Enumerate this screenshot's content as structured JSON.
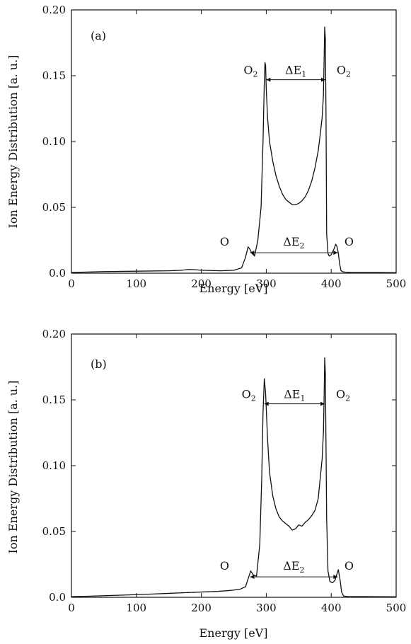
{
  "chart_data": [
    {
      "type": "line",
      "panel_label": "(a)",
      "xlabel": "Energy [eV]",
      "ylabel": "Ion Energy Distribution [a. u.]",
      "xlim": [
        0,
        500
      ],
      "ylim": [
        0,
        0.2
      ],
      "xticks": [
        0,
        100,
        200,
        300,
        400,
        500
      ],
      "xtick_labels": [
        "0",
        "100",
        "200",
        "300",
        "400",
        "500"
      ],
      "yticks": [
        0,
        0.05,
        0.1,
        0.15,
        0.2
      ],
      "ytick_labels": [
        "0.0",
        "0.05",
        "0.10",
        "0.15",
        "0.20"
      ],
      "grid": false,
      "series": [
        {
          "x": [
            0,
            20,
            50,
            100,
            150,
            170,
            180,
            190,
            200,
            230,
            250,
            262,
            268,
            272,
            275,
            278,
            282,
            287,
            292,
            295,
            297,
            298,
            299,
            300,
            302,
            305,
            310,
            315,
            320,
            325,
            330,
            335,
            340,
            345,
            350,
            355,
            360,
            365,
            370,
            375,
            380,
            383,
            386,
            388,
            389,
            390,
            391,
            392,
            393,
            395,
            397,
            400,
            404,
            407,
            409,
            411,
            413,
            415,
            418,
            422,
            430,
            450,
            470,
            500
          ],
          "y": [
            0.0005,
            0.0008,
            0.0012,
            0.0015,
            0.0018,
            0.0022,
            0.0028,
            0.0026,
            0.0022,
            0.0018,
            0.0022,
            0.004,
            0.012,
            0.02,
            0.018,
            0.015,
            0.013,
            0.025,
            0.05,
            0.1,
            0.145,
            0.16,
            0.158,
            0.14,
            0.118,
            0.1,
            0.085,
            0.074,
            0.066,
            0.06,
            0.056,
            0.054,
            0.052,
            0.052,
            0.053,
            0.055,
            0.058,
            0.063,
            0.07,
            0.08,
            0.093,
            0.105,
            0.118,
            0.135,
            0.16,
            0.187,
            0.178,
            0.12,
            0.03,
            0.015,
            0.013,
            0.014,
            0.018,
            0.022,
            0.02,
            0.015,
            0.007,
            0.002,
            0.001,
            0.0008,
            0.0006,
            0.0005,
            0.0005,
            0.0004
          ]
        }
      ],
      "annotations": {
        "o2_left": "O",
        "o2_right": "O",
        "o2_sub": "2",
        "de1": "ΔE",
        "de1_sub": "1",
        "o_left": "O",
        "o_right": "O",
        "de2": "ΔE",
        "de2_sub": "2",
        "de1_range": [
          300,
          391
        ],
        "de1_y": 0.147,
        "de2_range": [
          275,
          410
        ],
        "de2_y": 0.0155
      }
    },
    {
      "type": "line",
      "panel_label": "(b)",
      "xlabel": "Energy [eV]",
      "ylabel": "Ion Energy Distribution [a. u.]",
      "xlim": [
        0,
        500
      ],
      "ylim": [
        0,
        0.2
      ],
      "xticks": [
        0,
        100,
        200,
        300,
        400,
        500
      ],
      "xtick_labels": [
        "0",
        "100",
        "200",
        "300",
        "400",
        "500"
      ],
      "yticks": [
        0,
        0.05,
        0.1,
        0.15,
        0.2
      ],
      "ytick_labels": [
        "0.0",
        "0.05",
        "0.10",
        "0.15",
        "0.20"
      ],
      "grid": false,
      "series": [
        {
          "x": [
            0,
            25,
            50,
            75,
            100,
            125,
            150,
            175,
            200,
            225,
            240,
            250,
            260,
            268,
            272,
            276,
            280,
            285,
            290,
            293,
            295,
            297,
            299,
            302,
            305,
            310,
            315,
            320,
            325,
            330,
            335,
            340,
            345,
            350,
            355,
            360,
            365,
            370,
            375,
            380,
            383,
            386,
            388,
            389,
            390,
            391,
            393,
            395,
            398,
            402,
            406,
            409,
            411,
            414,
            416,
            419,
            425,
            450,
            500
          ],
          "y": [
            0.0005,
            0.0008,
            0.0012,
            0.0016,
            0.002,
            0.0025,
            0.003,
            0.0035,
            0.004,
            0.0045,
            0.005,
            0.0055,
            0.0062,
            0.008,
            0.014,
            0.02,
            0.017,
            0.016,
            0.04,
            0.09,
            0.14,
            0.166,
            0.155,
            0.12,
            0.095,
            0.077,
            0.067,
            0.061,
            0.058,
            0.056,
            0.054,
            0.051,
            0.052,
            0.055,
            0.054,
            0.057,
            0.059,
            0.062,
            0.066,
            0.075,
            0.09,
            0.105,
            0.125,
            0.15,
            0.182,
            0.17,
            0.06,
            0.02,
            0.012,
            0.011,
            0.013,
            0.018,
            0.021,
            0.012,
            0.004,
            0.001,
            0.0006,
            0.0005,
            0.0004
          ]
        }
      ],
      "annotations": {
        "o2_left": "O",
        "o2_right": "O",
        "o2_sub": "2",
        "de1": "ΔE",
        "de1_sub": "1",
        "o_left": "O",
        "o_right": "O",
        "de2": "ΔE",
        "de2_sub": "2",
        "de1_range": [
          297,
          390
        ],
        "de1_y": 0.147,
        "de2_range": [
          275,
          410
        ],
        "de2_y": 0.0155
      }
    }
  ]
}
